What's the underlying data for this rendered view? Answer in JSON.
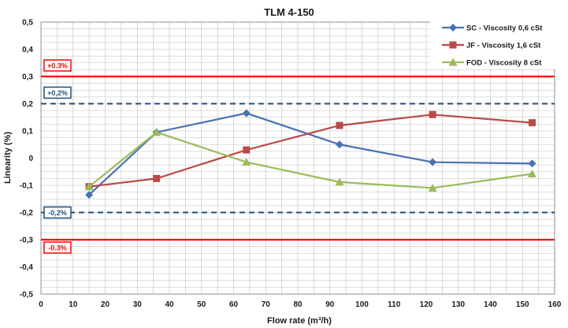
{
  "chart_data": {
    "type": "line",
    "title": "TLM 4-150",
    "xlabel": "Flow rate (m³/h)",
    "ylabel": "Linearity (%)",
    "xlim": [
      0,
      160
    ],
    "ylim": [
      -0.5,
      0.5
    ],
    "x_ticks": [
      "0",
      "10",
      "20",
      "30",
      "40",
      "50",
      "60",
      "70",
      "80",
      "90",
      "100",
      "110",
      "120",
      "130",
      "140",
      "150",
      "160"
    ],
    "y_ticks": [
      "0,5",
      "0,4",
      "0,3",
      "0,2",
      "0,1",
      "0",
      "-0,1",
      "-0,2",
      "-0,3",
      "-0,4",
      "-0,5"
    ],
    "grid": true,
    "legend_position": "top-right",
    "series": [
      {
        "name": "SC - Viscosity 0,6 cSt",
        "color": "#4a72b0",
        "marker": "diamond",
        "x": [
          15,
          36,
          64,
          93,
          122,
          153
        ],
        "y": [
          -0.135,
          0.095,
          0.165,
          0.05,
          -0.015,
          -0.02
        ]
      },
      {
        "name": "JF - Viscosity 1,6 cSt",
        "color": "#b94a48",
        "marker": "square",
        "x": [
          15,
          36,
          64,
          93,
          122,
          153
        ],
        "y": [
          -0.105,
          -0.075,
          0.03,
          0.12,
          0.16,
          0.13
        ]
      },
      {
        "name": "FOD - Viscosity 8 cSt",
        "color": "#9bbb59",
        "marker": "triangle",
        "x": [
          15,
          36,
          64,
          93,
          122,
          153
        ],
        "y": [
          -0.105,
          0.095,
          -0.015,
          -0.088,
          -0.11,
          -0.058
        ]
      }
    ],
    "reference_lines": [
      {
        "label": "+0.3%",
        "value": 0.3,
        "color": "#ff0000",
        "style": "solid"
      },
      {
        "label": "+0,2%",
        "value": 0.2,
        "color": "#1f4e79",
        "style": "dashed"
      },
      {
        "label": "-0,2%",
        "value": -0.2,
        "color": "#1f4e79",
        "style": "dashed"
      },
      {
        "label": "-0.3%",
        "value": -0.3,
        "color": "#ff0000",
        "style": "solid"
      }
    ]
  }
}
